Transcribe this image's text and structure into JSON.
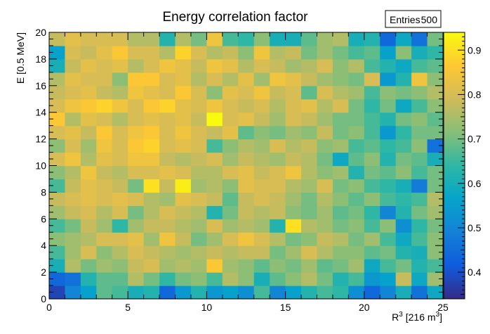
{
  "chart_data": {
    "type": "heatmap",
    "title": "Energy correlation factor",
    "xlabel_base": "R",
    "xlabel_sup": "3",
    "xlabel_unit_pre": " [216 m",
    "xlabel_unit_sup": "3",
    "xlabel_unit_post": "]",
    "ylabel": "E [0.5 MeV]",
    "xlim": [
      0,
      25
    ],
    "ylim": [
      0,
      20
    ],
    "x_bins": 25,
    "y_bins": 20,
    "x_ticks": [
      "0",
      "5",
      "10",
      "15",
      "20",
      "25"
    ],
    "y_ticks": [
      "0",
      "2",
      "4",
      "6",
      "8",
      "10",
      "12",
      "14",
      "16",
      "18",
      "20"
    ],
    "zlim": [
      0.34,
      0.94
    ],
    "z_ticks": [
      "0.4",
      "0.5",
      "0.6",
      "0.7",
      "0.8",
      "0.9"
    ],
    "stats": {
      "label": "Entries",
      "value": "500"
    },
    "grid": false,
    "palette": "viridis-like (dark blue to yellow)",
    "z_rows_bottom_to_top": [
      [
        0.38,
        0.5,
        0.56,
        0.68,
        0.66,
        0.6,
        0.62,
        0.44,
        0.54,
        0.62,
        0.54,
        0.56,
        0.52,
        0.66,
        0.5,
        0.56,
        0.62,
        0.66,
        0.64,
        0.52,
        0.44,
        0.5,
        0.6,
        0.46,
        0.58
      ],
      [
        0.44,
        0.46,
        0.62,
        0.68,
        0.68,
        0.76,
        0.7,
        0.64,
        0.7,
        0.72,
        0.66,
        0.76,
        0.72,
        0.6,
        0.68,
        0.72,
        0.76,
        0.7,
        0.62,
        0.66,
        0.54,
        0.56,
        0.78,
        0.58,
        0.74
      ],
      [
        0.6,
        0.76,
        0.7,
        0.74,
        0.72,
        0.78,
        0.8,
        0.74,
        0.76,
        0.74,
        0.86,
        0.74,
        0.72,
        0.68,
        0.72,
        0.7,
        0.74,
        0.68,
        0.7,
        0.74,
        0.58,
        0.66,
        0.7,
        0.62,
        0.66
      ],
      [
        0.66,
        0.74,
        0.8,
        0.72,
        0.76,
        0.8,
        0.78,
        0.76,
        0.74,
        0.76,
        0.78,
        0.76,
        0.78,
        0.78,
        0.7,
        0.74,
        0.8,
        0.76,
        0.72,
        0.72,
        0.68,
        0.7,
        0.62,
        0.6,
        0.72
      ],
      [
        0.72,
        0.74,
        0.76,
        0.8,
        0.8,
        0.82,
        0.74,
        0.84,
        0.78,
        0.7,
        0.74,
        0.8,
        0.84,
        0.8,
        0.76,
        0.7,
        0.72,
        0.78,
        0.76,
        0.7,
        0.74,
        0.66,
        0.58,
        0.66,
        0.72
      ],
      [
        0.66,
        0.7,
        0.78,
        0.74,
        0.64,
        0.74,
        0.78,
        0.78,
        0.76,
        0.74,
        0.8,
        0.74,
        0.76,
        0.74,
        0.62,
        0.9,
        0.76,
        0.74,
        0.7,
        0.72,
        0.66,
        0.72,
        0.52,
        0.64,
        0.7
      ],
      [
        0.74,
        0.78,
        0.8,
        0.76,
        0.8,
        0.7,
        0.76,
        0.8,
        0.78,
        0.76,
        0.62,
        0.7,
        0.78,
        0.76,
        0.78,
        0.72,
        0.7,
        0.74,
        0.68,
        0.7,
        0.64,
        0.5,
        0.62,
        0.7,
        0.74
      ],
      [
        0.78,
        0.8,
        0.82,
        0.8,
        0.82,
        0.8,
        0.76,
        0.74,
        0.82,
        0.8,
        0.78,
        0.68,
        0.78,
        0.8,
        0.78,
        0.74,
        0.7,
        0.76,
        0.72,
        0.68,
        0.72,
        0.66,
        0.64,
        0.66,
        0.76
      ],
      [
        0.66,
        0.78,
        0.82,
        0.8,
        0.78,
        0.7,
        0.9,
        0.78,
        0.92,
        0.74,
        0.76,
        0.72,
        0.82,
        0.8,
        0.8,
        0.76,
        0.74,
        0.8,
        0.7,
        0.72,
        0.66,
        0.64,
        0.6,
        0.48,
        0.7
      ],
      [
        0.72,
        0.76,
        0.84,
        0.78,
        0.76,
        0.8,
        0.8,
        0.82,
        0.8,
        0.76,
        0.76,
        0.8,
        0.82,
        0.78,
        0.8,
        0.84,
        0.76,
        0.72,
        0.74,
        0.62,
        0.7,
        0.68,
        0.72,
        0.66,
        0.7
      ],
      [
        0.8,
        0.84,
        0.76,
        0.82,
        0.8,
        0.84,
        0.84,
        0.78,
        0.76,
        0.78,
        0.8,
        0.74,
        0.78,
        0.76,
        0.74,
        0.78,
        0.76,
        0.7,
        0.58,
        0.68,
        0.72,
        0.62,
        0.7,
        0.68,
        0.6
      ],
      [
        0.72,
        0.8,
        0.74,
        0.84,
        0.8,
        0.86,
        0.88,
        0.8,
        0.82,
        0.8,
        0.66,
        0.72,
        0.76,
        0.74,
        0.8,
        0.76,
        0.78,
        0.72,
        0.74,
        0.66,
        0.68,
        0.64,
        0.66,
        0.72,
        0.46
      ],
      [
        0.8,
        0.82,
        0.78,
        0.86,
        0.8,
        0.84,
        0.86,
        0.8,
        0.84,
        0.8,
        0.78,
        0.82,
        0.68,
        0.72,
        0.7,
        0.74,
        0.72,
        0.78,
        0.7,
        0.72,
        0.66,
        0.54,
        0.64,
        0.7,
        0.7
      ],
      [
        0.86,
        0.76,
        0.82,
        0.8,
        0.76,
        0.8,
        0.82,
        0.8,
        0.82,
        0.78,
        0.94,
        0.8,
        0.82,
        0.78,
        0.74,
        0.8,
        0.78,
        0.74,
        0.7,
        0.7,
        0.66,
        0.62,
        0.7,
        0.72,
        0.68
      ],
      [
        0.8,
        0.84,
        0.86,
        0.88,
        0.84,
        0.8,
        0.86,
        0.88,
        0.82,
        0.8,
        0.84,
        0.8,
        0.78,
        0.8,
        0.76,
        0.8,
        0.82,
        0.76,
        0.8,
        0.7,
        0.64,
        0.7,
        0.58,
        0.66,
        0.72
      ],
      [
        0.78,
        0.8,
        0.82,
        0.78,
        0.76,
        0.84,
        0.82,
        0.8,
        0.86,
        0.8,
        0.72,
        0.82,
        0.8,
        0.84,
        0.78,
        0.8,
        0.68,
        0.8,
        0.76,
        0.74,
        0.66,
        0.72,
        0.7,
        0.72,
        0.76
      ],
      [
        0.76,
        0.82,
        0.8,
        0.8,
        0.72,
        0.86,
        0.86,
        0.8,
        0.82,
        0.76,
        0.8,
        0.76,
        0.82,
        0.74,
        0.84,
        0.82,
        0.78,
        0.74,
        0.72,
        0.7,
        0.8,
        0.54,
        0.62,
        0.84,
        0.72
      ],
      [
        0.6,
        0.78,
        0.82,
        0.8,
        0.82,
        0.76,
        0.8,
        0.84,
        0.82,
        0.78,
        0.84,
        0.82,
        0.76,
        0.8,
        0.78,
        0.74,
        0.76,
        0.8,
        0.72,
        0.76,
        0.66,
        0.62,
        0.58,
        0.66,
        0.68
      ],
      [
        0.56,
        0.8,
        0.78,
        0.82,
        0.86,
        0.8,
        0.8,
        0.76,
        0.88,
        0.8,
        0.76,
        0.78,
        0.72,
        0.84,
        0.76,
        0.78,
        0.7,
        0.74,
        0.7,
        0.66,
        0.68,
        0.56,
        0.72,
        0.6,
        0.64
      ],
      [
        0.78,
        0.82,
        0.8,
        0.8,
        0.8,
        0.76,
        0.76,
        0.62,
        0.76,
        0.7,
        0.84,
        0.66,
        0.64,
        0.72,
        0.6,
        0.6,
        0.68,
        0.74,
        0.76,
        0.6,
        0.62,
        0.44,
        0.58,
        0.46,
        0.7
      ]
    ]
  }
}
